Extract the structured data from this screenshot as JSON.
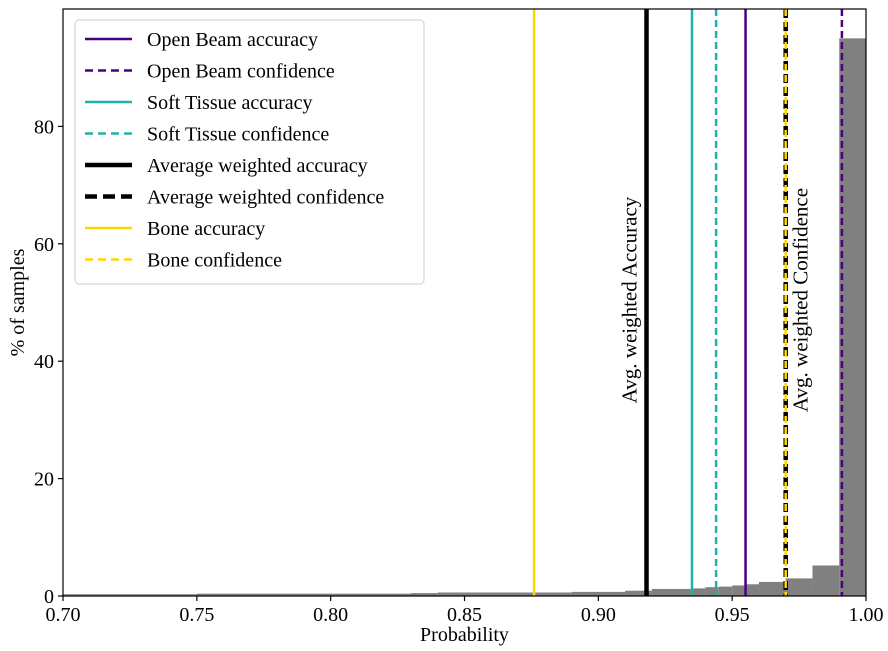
{
  "chart_data": {
    "type": "bar",
    "title": "",
    "xlabel": "Probability",
    "ylabel": "% of samples",
    "xlim": [
      0.7,
      1.0
    ],
    "ylim": [
      0,
      100
    ],
    "grid": false,
    "legend_position": "top-left",
    "x_ticks": [
      0.7,
      0.75,
      0.8,
      0.85,
      0.9,
      0.95,
      1.0
    ],
    "x_tick_labels": [
      "0.70",
      "0.75",
      "0.80",
      "0.85",
      "0.90",
      "0.95",
      "1.00"
    ],
    "y_ticks": [
      0,
      20,
      40,
      60,
      80
    ],
    "y_tick_labels": [
      "0",
      "20",
      "40",
      "60",
      "80"
    ],
    "histogram": {
      "color": "#808080",
      "bins": [
        {
          "x0": 0.7,
          "x1": 0.75,
          "value": 0.3
        },
        {
          "x0": 0.75,
          "x1": 0.83,
          "value": 0.4
        },
        {
          "x0": 0.83,
          "x1": 0.84,
          "value": 0.5
        },
        {
          "x0": 0.84,
          "x1": 0.89,
          "value": 0.6
        },
        {
          "x0": 0.89,
          "x1": 0.91,
          "value": 0.7
        },
        {
          "x0": 0.91,
          "x1": 0.92,
          "value": 0.9
        },
        {
          "x0": 0.92,
          "x1": 0.935,
          "value": 1.2
        },
        {
          "x0": 0.935,
          "x1": 0.94,
          "value": 1.3
        },
        {
          "x0": 0.94,
          "x1": 0.945,
          "value": 1.5
        },
        {
          "x0": 0.945,
          "x1": 0.95,
          "value": 1.6
        },
        {
          "x0": 0.95,
          "x1": 0.955,
          "value": 1.8
        },
        {
          "x0": 0.955,
          "x1": 0.96,
          "value": 2.0
        },
        {
          "x0": 0.96,
          "x1": 0.97,
          "value": 2.4
        },
        {
          "x0": 0.97,
          "x1": 0.98,
          "value": 3.0
        },
        {
          "x0": 0.98,
          "x1": 0.99,
          "value": 5.2
        },
        {
          "x0": 0.99,
          "x1": 1.0,
          "value": 95.0
        }
      ]
    },
    "vertical_lines": [
      {
        "name": "Open Beam accuracy",
        "x": 0.955,
        "color": "#4b0082",
        "style": "solid",
        "width": 2.5
      },
      {
        "name": "Open Beam confidence",
        "x": 0.991,
        "color": "#4b0082",
        "style": "dashed",
        "width": 2.5
      },
      {
        "name": "Soft Tissue accuracy",
        "x": 0.935,
        "color": "#20b2aa",
        "style": "solid",
        "width": 2.5
      },
      {
        "name": "Soft Tissue confidence",
        "x": 0.944,
        "color": "#20b2aa",
        "style": "dashed",
        "width": 2.5
      },
      {
        "name": "Average weighted accuracy",
        "x": 0.918,
        "color": "#000000",
        "style": "solid",
        "width": 4.5
      },
      {
        "name": "Average weighted confidence",
        "x": 0.97,
        "color": "#000000",
        "style": "dashed",
        "width": 4.5
      },
      {
        "name": "Bone accuracy",
        "x": 0.876,
        "color": "#ffd700",
        "style": "solid",
        "width": 2.5
      },
      {
        "name": "Bone confidence",
        "x": 0.97,
        "color": "#ffd700",
        "style": "dashed",
        "width": 2.5
      }
    ],
    "annotations": [
      {
        "text": "Avg. weighted Accuracy",
        "x": 0.918,
        "side": "left"
      },
      {
        "text": "Avg. weighted Confidence",
        "x": 0.97,
        "side": "right"
      }
    ]
  }
}
